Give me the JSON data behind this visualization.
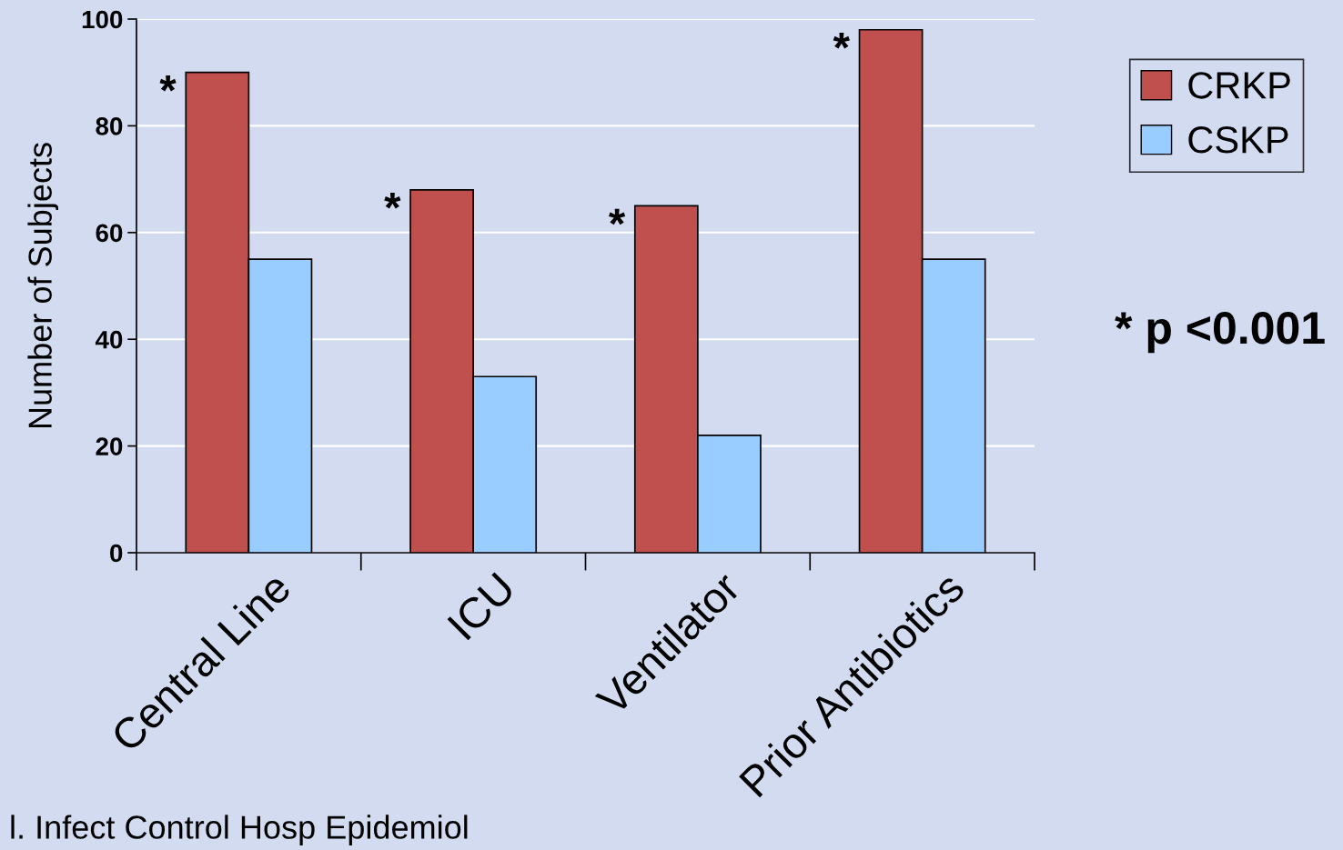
{
  "chart_data": {
    "type": "bar",
    "ylabel": "Number of Subjects",
    "categories": [
      "Central Line",
      "ICU",
      "Ventilator",
      "Prior Antibiotics"
    ],
    "series": [
      {
        "name": "CRKP",
        "color": "#c0504d",
        "values": [
          90,
          68,
          65,
          98
        ]
      },
      {
        "name": "CSKP",
        "color": "#99ccff",
        "values": [
          55,
          33,
          22,
          55
        ]
      }
    ],
    "ylim": [
      0,
      100
    ],
    "yticks": [
      0,
      20,
      40,
      60,
      80,
      100
    ],
    "grid": "y",
    "legend": "top right",
    "annotations": [
      {
        "text": "*",
        "x": "Central Line",
        "y": 90
      },
      {
        "text": "*",
        "x": "ICU",
        "y": 68
      },
      {
        "text": "*",
        "x": "Ventilator",
        "y": 65
      },
      {
        "text": "*",
        "x": "Prior Antibiotics",
        "y": 98
      },
      "* p <0.001",
      "l. Infect Control Hosp Epidemiol"
    ]
  }
}
